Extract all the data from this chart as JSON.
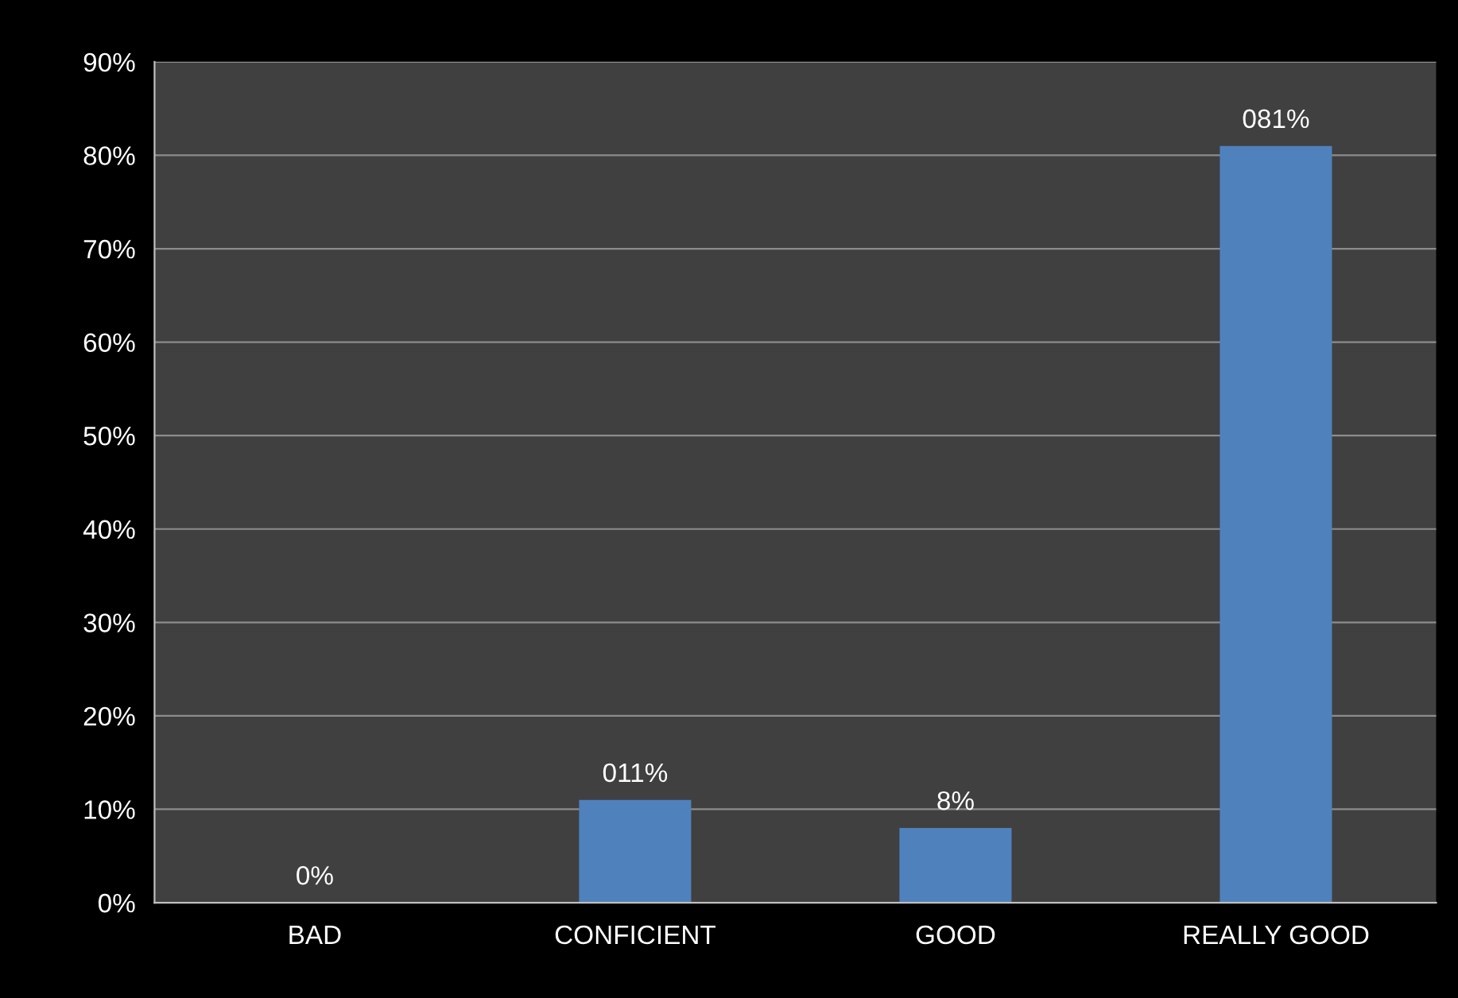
{
  "chart_data": {
    "type": "bar",
    "categories": [
      "BAD",
      "CONFICIENT",
      "GOOD",
      "REALLY GOOD"
    ],
    "values": [
      0,
      11,
      8,
      81
    ],
    "value_labels": [
      "0%",
      "011%",
      "8%",
      "081%"
    ],
    "color": "#4f81bd",
    "ylim": [
      0,
      90
    ],
    "yticks": [
      {
        "value": 0,
        "label": "0%"
      },
      {
        "value": 10,
        "label": "10%"
      },
      {
        "value": 20,
        "label": "20%"
      },
      {
        "value": 30,
        "label": "30%"
      },
      {
        "value": 40,
        "label": "40%"
      },
      {
        "value": 50,
        "label": "50%"
      },
      {
        "value": 60,
        "label": "60%"
      },
      {
        "value": 70,
        "label": "70%"
      },
      {
        "value": 80,
        "label": "80%"
      },
      {
        "value": 90,
        "label": "90%"
      }
    ],
    "grid": "y",
    "legend": false
  }
}
